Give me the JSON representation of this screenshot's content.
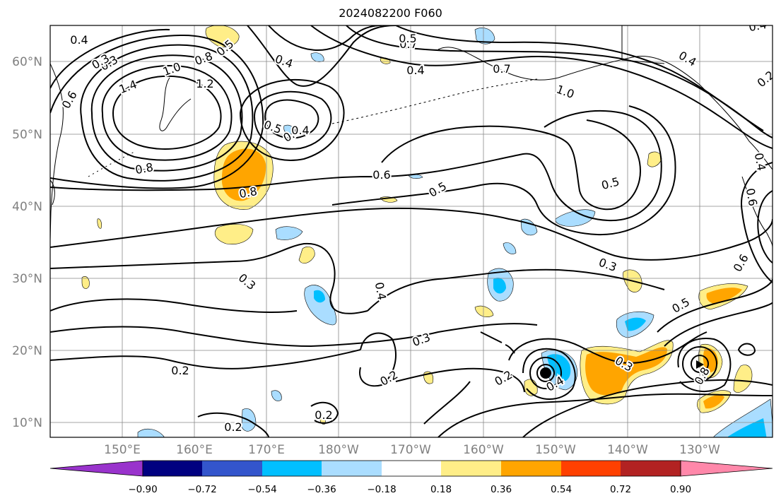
{
  "title": "2024082200 F060",
  "latitude_labels": [
    "60°N",
    "50°N",
    "40°N",
    "30°N",
    "20°N",
    "10°N"
  ],
  "longitude_labels": [
    "150°E",
    "160°E",
    "170°E",
    "180°W",
    "170°W",
    "160°W",
    "150°W",
    "140°W",
    "130°W"
  ],
  "colorbar": {
    "tick_labels": [
      "−0.90",
      "−0.72",
      "−0.54",
      "−0.36",
      "−0.18",
      "0.18",
      "0.36",
      "0.54",
      "0.72",
      "0.90"
    ],
    "colors": [
      "#9933cc",
      "#000080",
      "#3355cc",
      "#00bfff",
      "#aaddff",
      "#ffffff",
      "#ffee88",
      "#ffa500",
      "#ff4000",
      "#b22222",
      "#ff88aa"
    ]
  },
  "contour_labels": [
    "0.4",
    "0.3",
    "0.5",
    "0.8",
    "0.7",
    "0.4",
    "1.0",
    "1.4",
    "1.2",
    "0.6",
    "0.5",
    "0.4",
    "0.8",
    "0.8",
    "0.6",
    "0.5",
    "1.0",
    "0.7",
    "0.3",
    "0.4",
    "0.5",
    "0.5",
    "0.4",
    "0.4",
    "0.6",
    "0.3",
    "0.4",
    "0.5",
    "0.3",
    "0.2",
    "0.2",
    "0.2",
    "0.3",
    "0.2",
    "0.2",
    "0.4",
    "0.3",
    "0.4",
    "0.2",
    "0.6",
    "0.4",
    "0.8"
  ],
  "fill_colors": {
    "light_blue": "#aaddff",
    "blue": "#00bfff",
    "deep_blue": "#3355cc",
    "yellow": "#ffee88",
    "orange": "#ffa500"
  }
}
